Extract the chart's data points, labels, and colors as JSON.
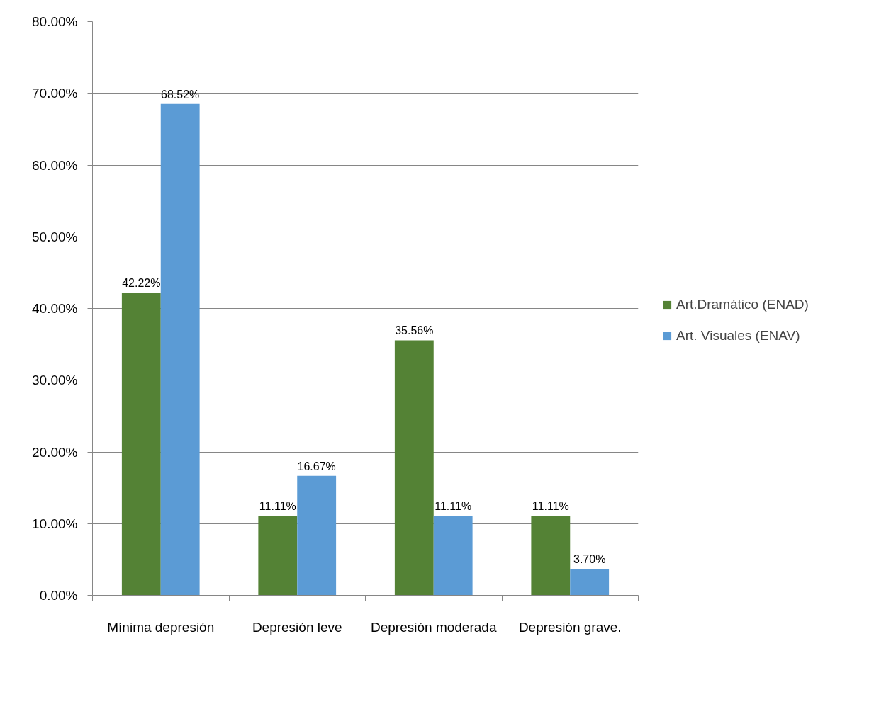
{
  "chart_data": {
    "type": "bar",
    "categories": [
      "Mínima depresión",
      "Depresión leve",
      "Depresión moderada",
      "Depresión grave."
    ],
    "series": [
      {
        "name": "Art.Dramático (ENAD)",
        "color": "#548235",
        "values": [
          42.22,
          11.11,
          35.56,
          11.11
        ],
        "value_labels": [
          "42.22%",
          "11.11%",
          "35.56%",
          "11.11%"
        ]
      },
      {
        "name": "Art. Visuales (ENAV)",
        "color": "#5b9bd5",
        "values": [
          68.52,
          16.67,
          11.11,
          3.7
        ],
        "value_labels": [
          "68.52%",
          "16.67%",
          "11.11%",
          "3.70%"
        ]
      }
    ],
    "ylim": [
      0,
      80
    ],
    "yticks": [
      {
        "value": 0,
        "label": "0.00%"
      },
      {
        "value": 10,
        "label": "10.00%"
      },
      {
        "value": 20,
        "label": "20.00%"
      },
      {
        "value": 30,
        "label": "30.00%"
      },
      {
        "value": 40,
        "label": "40.00%"
      },
      {
        "value": 50,
        "label": "50.00%"
      },
      {
        "value": 60,
        "label": "60.00%"
      },
      {
        "value": 70,
        "label": "70.00%"
      },
      {
        "value": 80,
        "label": "80.00%"
      }
    ],
    "grid": "y",
    "legend": "right"
  }
}
